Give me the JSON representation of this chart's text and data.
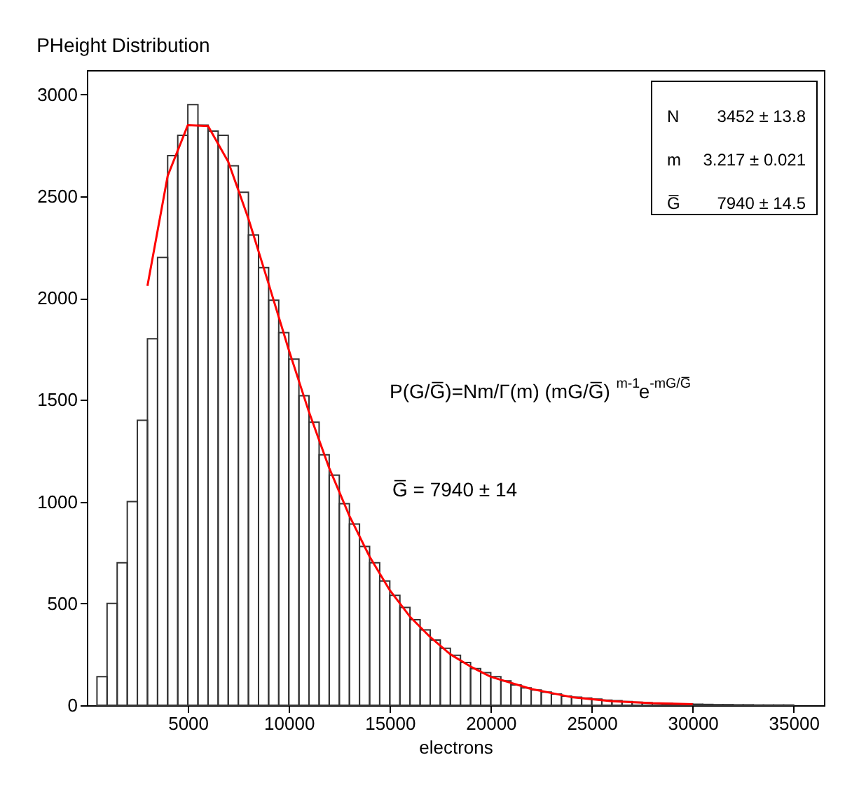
{
  "chart_data": {
    "type": "histogram",
    "title": "PHeight Distribution",
    "xlabel": "electrons",
    "bins": [
      500,
      1000,
      1500,
      2000,
      2500,
      3000,
      3500,
      4000,
      4500,
      5000,
      5500,
      6000,
      6500,
      7000,
      7500,
      8000,
      8500,
      9000,
      9500,
      10000,
      10500,
      11000,
      11500,
      12000,
      12500,
      13000,
      13500,
      14000,
      14500,
      15000,
      15500,
      16000,
      16500,
      17000,
      17500,
      18000,
      18500,
      19000,
      19500,
      20000,
      20500,
      21000,
      21500,
      22000,
      22500,
      23000,
      23500,
      24000,
      24500,
      25000,
      25500,
      26000,
      26500,
      27000,
      27500,
      28000,
      28500,
      29000,
      29500,
      30000,
      30500,
      31000,
      31500,
      32000,
      32500,
      33000,
      33500,
      34000,
      34500,
      35000
    ],
    "series": [
      {
        "color": "#333333",
        "values": [
          140,
          500,
          700,
          1000,
          1400,
          1800,
          2200,
          2700,
          2800,
          2950,
          2850,
          2820,
          2800,
          2650,
          2520,
          2310,
          2150,
          1990,
          1830,
          1700,
          1520,
          1390,
          1230,
          1130,
          990,
          890,
          780,
          700,
          610,
          540,
          480,
          420,
          370,
          320,
          280,
          245,
          210,
          180,
          160,
          140,
          120,
          100,
          85,
          75,
          65,
          55,
          45,
          40,
          35,
          30,
          25,
          22,
          18,
          15,
          12,
          10,
          9,
          7,
          6,
          5,
          4,
          3,
          3,
          2,
          2,
          1,
          1,
          1,
          1
        ]
      },
      {
        "type": "line",
        "color": "#ff0000",
        "x": [
          3000,
          4000,
          5000,
          6000,
          7000,
          8000,
          9000,
          10000,
          11000,
          12000,
          13000,
          14000,
          15000,
          16000,
          17000,
          18000,
          19000,
          20000,
          22000,
          24000,
          26000,
          28000,
          30000
        ],
        "values": [
          2060,
          2600,
          2850,
          2845,
          2670,
          2390,
          2070,
          1745,
          1440,
          1165,
          930,
          730,
          565,
          435,
          335,
          250,
          190,
          140,
          80,
          40,
          20,
          10,
          5
        ]
      }
    ],
    "xlim": [
      0,
      36500
    ],
    "ylim": [
      0,
      3120
    ],
    "xticks": [
      5000,
      10000,
      15000,
      20000,
      25000,
      30000,
      35000
    ],
    "yticks": [
      0,
      500,
      1000,
      1500,
      2000,
      2500,
      3000
    ],
    "annotations": [
      "N",
      "3452 ± 13.8",
      "m",
      "3.217 ± 0.021",
      "G̅",
      "7940 ± 14.5",
      "P(G/G̅)=Nm/Γ(m) (mG/G̅)$^{m-1}$e$^{-mG/G̅}$",
      "G̅ = 7940 ± 14"
    ],
    "grid": false
  }
}
